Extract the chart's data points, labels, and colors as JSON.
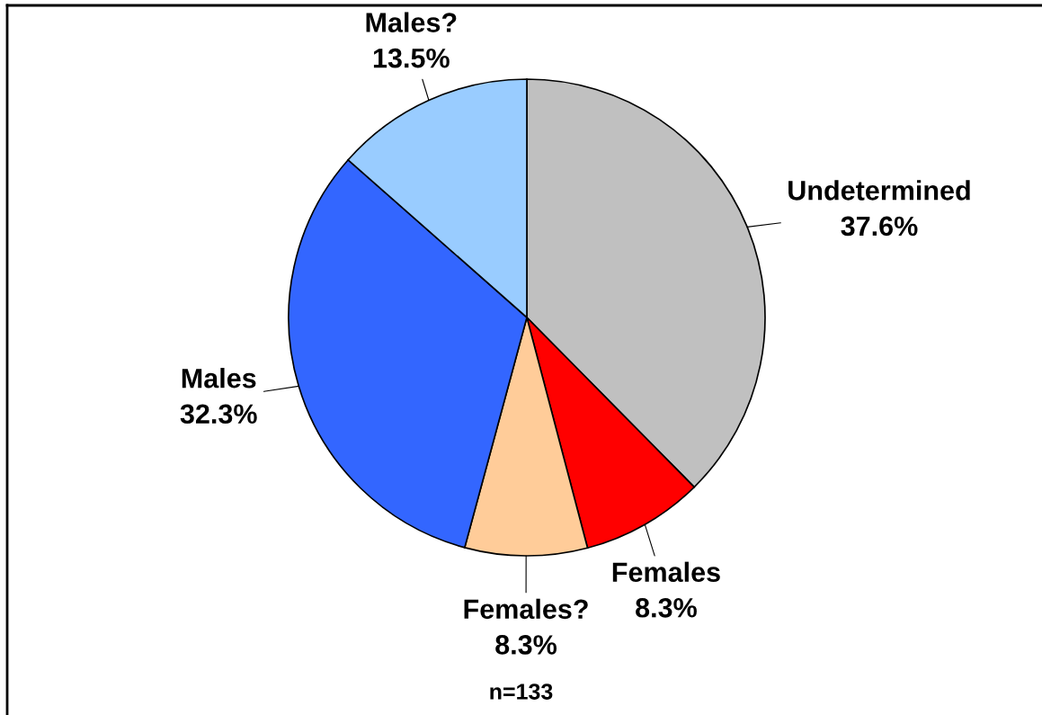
{
  "chart_data": {
    "type": "pie",
    "categories": [
      "Undetermined",
      "Females",
      "Females?",
      "Males",
      "Males?"
    ],
    "values": [
      37.6,
      8.3,
      8.3,
      32.3,
      13.5
    ],
    "colors": [
      "#c0c0c0",
      "#ff0000",
      "#ffcc99",
      "#3366ff",
      "#99ccff"
    ],
    "value_labels": [
      "37.6%",
      "8.3%",
      "8.3%",
      "32.3%",
      "13.5%"
    ],
    "annotations": [
      "n=133"
    ]
  }
}
